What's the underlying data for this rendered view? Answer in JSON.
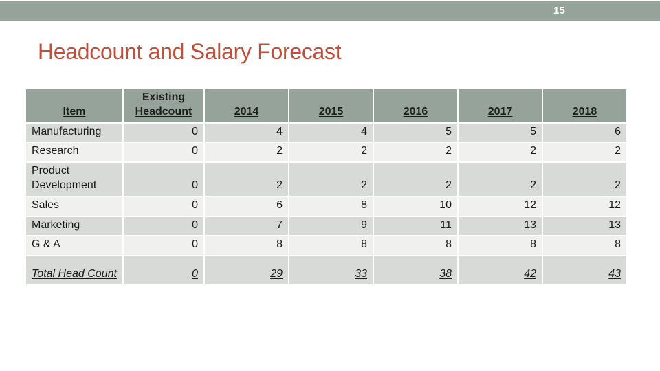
{
  "slide": {
    "page_number": "15",
    "title": "Headcount and Salary Forecast"
  },
  "table": {
    "columns": [
      "Item",
      "Existing Headcount",
      "2014",
      "2015",
      "2016",
      "2017",
      "2018"
    ],
    "rows": [
      {
        "item": "Manufacturing",
        "values": [
          "0",
          "4",
          "4",
          "5",
          "5",
          "6"
        ]
      },
      {
        "item": "Research",
        "values": [
          "0",
          "2",
          "2",
          "2",
          "2",
          "2"
        ]
      },
      {
        "item": "Product Development",
        "values": [
          "0",
          "2",
          "2",
          "2",
          "2",
          "2"
        ]
      },
      {
        "item": "Sales",
        "values": [
          "0",
          "6",
          "8",
          "10",
          "12",
          "12"
        ]
      },
      {
        "item": "Marketing",
        "values": [
          "0",
          "7",
          "9",
          "11",
          "13",
          "13"
        ]
      },
      {
        "item": "G & A",
        "values": [
          "0",
          "8",
          "8",
          "8",
          "8",
          "8"
        ]
      },
      {
        "item": "Total Head Count",
        "values": [
          "0",
          "29",
          "33",
          "38",
          "42",
          "43"
        ]
      }
    ]
  },
  "colors": {
    "accent_bar": "#95a39a",
    "title_text": "#bf4f3b",
    "header_bg": "#95a39a",
    "row_dark": "#d7dad6",
    "row_light": "#f0f1ee",
    "table_text": "#1a1a1a",
    "page_number_text": "#ffffff"
  }
}
